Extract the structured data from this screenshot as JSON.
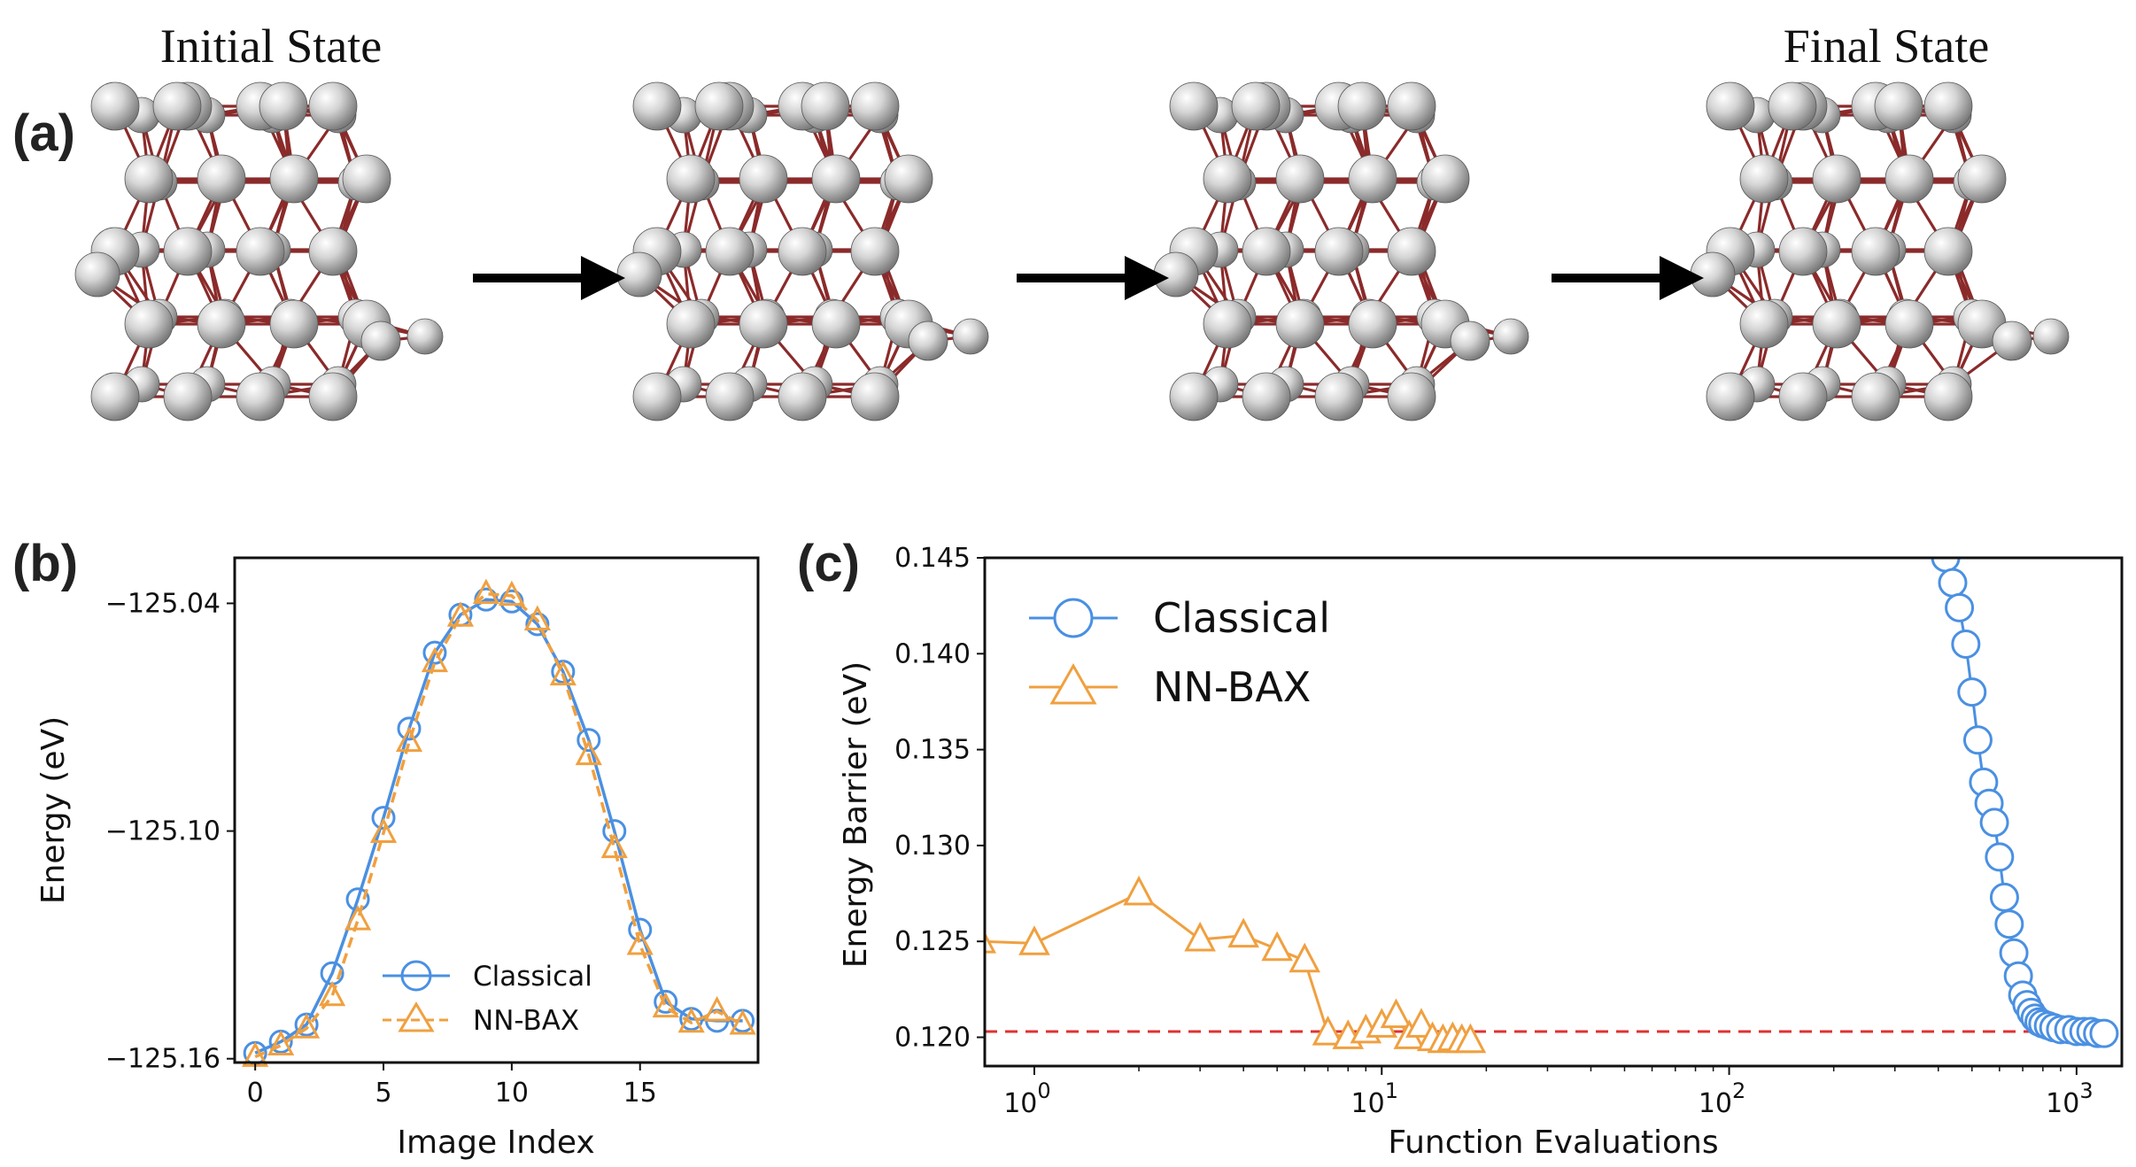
{
  "figure": {
    "panel_labels": {
      "a": "(a)",
      "b": "(b)",
      "c": "(c)"
    },
    "initial_state_title": "Initial State",
    "final_state_title": "Final State",
    "colors": {
      "classical": "#4a90e2",
      "nnbax": "#f0a040",
      "reference": "#e03030",
      "bond": "#8b2a2a",
      "atom": "#d8d8d8"
    }
  },
  "chart_data": [
    {
      "id": "b",
      "type": "line",
      "title": "",
      "xlabel": "Image Index",
      "ylabel": "Energy (eV)",
      "xlim": [
        -0.8,
        19.6
      ],
      "ylim": [
        -125.161,
        -125.028
      ],
      "xticks": [
        0,
        5,
        10,
        15
      ],
      "xtick_labels": [
        "0",
        "5",
        "10",
        "15"
      ],
      "yticks": [
        -125.04,
        -125.1,
        -125.16
      ],
      "ytick_labels": [
        "−125.04",
        "−125.10",
        "−125.16"
      ],
      "legend": "lower-right",
      "series": [
        {
          "name": "Classical",
          "marker": "circle",
          "linestyle": "solid",
          "x": [
            0,
            1,
            2,
            3,
            4,
            5,
            6,
            7,
            8,
            9,
            10,
            11,
            12,
            13,
            14,
            15,
            16,
            17,
            18,
            19
          ],
          "y": [
            -125.1585,
            -125.1555,
            -125.151,
            -125.1375,
            -125.118,
            -125.0965,
            -125.073,
            -125.053,
            -125.043,
            -125.039,
            -125.0395,
            -125.0455,
            -125.058,
            -125.076,
            -125.1,
            -125.126,
            -125.145,
            -125.1495,
            -125.15,
            -125.15
          ]
        },
        {
          "name": "NN-BAX",
          "marker": "triangle",
          "linestyle": "dashed",
          "x": [
            0,
            1,
            2,
            3,
            4,
            5,
            6,
            7,
            8,
            9,
            10,
            11,
            12,
            13,
            14,
            15,
            16,
            17,
            18,
            19
          ],
          "y": [
            -125.1595,
            -125.1565,
            -125.152,
            -125.1435,
            -125.1235,
            -125.1005,
            -125.0765,
            -125.0555,
            -125.0435,
            -125.0375,
            -125.038,
            -125.0445,
            -125.059,
            -125.08,
            -125.1045,
            -125.13,
            -125.1465,
            -125.1505,
            -125.1475,
            -125.151
          ]
        }
      ]
    },
    {
      "id": "c",
      "type": "line",
      "title": "",
      "xscale": "log",
      "xlabel": "Function Evaluations",
      "ylabel": "Energy Barrier (eV)",
      "xlim": [
        0.72,
        1350
      ],
      "ylim": [
        0.1185,
        0.145
      ],
      "xtick_values": [
        1,
        10,
        100,
        1000
      ],
      "xtick_bases": [
        "10",
        "10",
        "10",
        "10"
      ],
      "xtick_exponents": [
        "0",
        "1",
        "2",
        "3"
      ],
      "yticks": [
        0.12,
        0.125,
        0.13,
        0.135,
        0.14,
        0.145
      ],
      "ytick_labels": [
        "0.120",
        "0.125",
        "0.130",
        "0.135",
        "0.140",
        "0.145"
      ],
      "reference_line": {
        "y": 0.1203,
        "style": "dashed"
      },
      "legend": "top-left",
      "series": [
        {
          "name": "Classical",
          "marker": "circle",
          "x": [
            420,
            440,
            460,
            480,
            500,
            520,
            540,
            560,
            580,
            600,
            620,
            640,
            660,
            680,
            700,
            720,
            740,
            760,
            780,
            800,
            830,
            860,
            900,
            950,
            1000,
            1050,
            1100,
            1150,
            1200
          ],
          "y": [
            0.145,
            0.1437,
            0.1424,
            0.1405,
            0.138,
            0.1355,
            0.1333,
            0.1322,
            0.1312,
            0.1294,
            0.1273,
            0.1259,
            0.1244,
            0.1232,
            0.1222,
            0.1217,
            0.1213,
            0.121,
            0.1208,
            0.1207,
            0.1206,
            0.1205,
            0.1204,
            0.1204,
            0.1203,
            0.1203,
            0.1203,
            0.1202,
            0.1202
          ]
        },
        {
          "name": "NN-BAX",
          "marker": "triangle",
          "x": [
            0.7,
            1,
            2,
            3,
            4,
            5,
            6,
            7,
            8,
            9,
            10,
            11,
            12,
            13,
            14,
            15,
            16,
            17,
            18
          ],
          "y": [
            0.125,
            0.1249,
            0.1275,
            0.1251,
            0.1253,
            0.1246,
            0.124,
            0.1202,
            0.12,
            0.1203,
            0.1206,
            0.1211,
            0.12,
            0.1206,
            0.1199,
            0.1198,
            0.1199,
            0.1198,
            0.1198
          ]
        }
      ]
    }
  ]
}
